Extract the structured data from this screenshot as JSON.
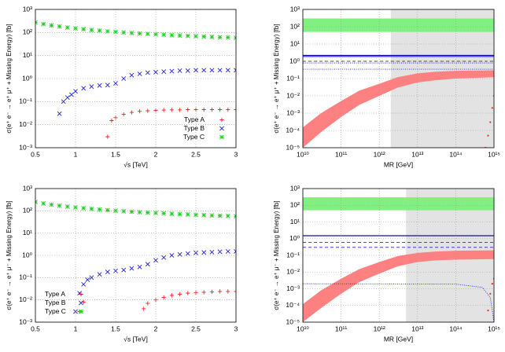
{
  "chart_data": [
    {
      "type": "scatter",
      "ylog": true,
      "grid": true,
      "legend": "lower right",
      "xlabel": "√s [TeV]",
      "ylabel": "σ(e⁺ e⁻ → e⁺ μ⁺ + Missing Energy) [fb]",
      "xlim": [
        0.5,
        3
      ],
      "ylim": [
        0.001,
        1000
      ],
      "xticks": [
        0.5,
        1,
        1.5,
        2,
        2.5,
        3
      ],
      "yticks": [
        {
          "value": 0.001,
          "label": "10⁻³"
        },
        {
          "value": 0.01,
          "label": "10⁻²"
        },
        {
          "value": 0.1,
          "label": "10⁻¹"
        },
        {
          "value": 1,
          "label": "10⁰"
        },
        {
          "value": 10,
          "label": "10¹"
        },
        {
          "value": 100,
          "label": "10²"
        },
        {
          "value": 1000,
          "label": "10³"
        }
      ],
      "series": [
        {
          "name": "Type A",
          "color": "#ff2020",
          "marker": "plus",
          "x": [
            1.4,
            1.45,
            1.5,
            1.6,
            1.7,
            1.8,
            1.9,
            2.0,
            2.1,
            2.2,
            2.3,
            2.4,
            2.5,
            2.6,
            2.7,
            2.8,
            2.9,
            3.0
          ],
          "values": [
            0.003,
            0.015,
            0.02,
            0.028,
            0.034,
            0.038,
            0.04,
            0.042,
            0.043,
            0.044,
            0.044,
            0.045,
            0.045,
            0.045,
            0.045,
            0.045,
            0.045,
            0.045
          ]
        },
        {
          "name": "Type B",
          "color": "#2020e0",
          "marker": "cross",
          "x": [
            0.8,
            0.85,
            0.9,
            0.95,
            1.0,
            1.1,
            1.2,
            1.3,
            1.4,
            1.5,
            1.6,
            1.7,
            1.8,
            1.9,
            2.0,
            2.1,
            2.2,
            2.3,
            2.4,
            2.5,
            2.6,
            2.7,
            2.8,
            2.9,
            3.0
          ],
          "values": [
            0.03,
            0.1,
            0.15,
            0.2,
            0.28,
            0.38,
            0.45,
            0.5,
            0.52,
            0.62,
            1.0,
            1.4,
            1.6,
            1.8,
            1.9,
            2.0,
            2.1,
            2.2,
            2.2,
            2.3,
            2.3,
            2.3,
            2.3,
            2.3,
            2.3
          ]
        },
        {
          "name": "Type C",
          "color": "#20d020",
          "marker": "star",
          "x": [
            0.5,
            0.6,
            0.7,
            0.8,
            0.9,
            1.0,
            1.1,
            1.2,
            1.3,
            1.4,
            1.5,
            1.6,
            1.7,
            1.8,
            1.9,
            2.0,
            2.1,
            2.2,
            2.3,
            2.4,
            2.5,
            2.6,
            2.7,
            2.8,
            2.9,
            3.0
          ],
          "values": [
            271,
            232,
            204,
            182,
            164,
            150,
            138,
            128,
            120,
            112,
            106,
            100,
            95,
            91,
            87,
            83,
            80,
            76,
            74,
            71,
            69,
            66,
            64,
            62,
            61,
            59
          ]
        }
      ]
    },
    {
      "type": "line",
      "xlog": true,
      "ylog": true,
      "grid": true,
      "xlabel": "MR [GeV]",
      "ylabel": "σ(e⁺ e⁻ → e⁺ μ⁺ + Missing Energy) [fb]",
      "xlim": [
        10000000000.0,
        1000000000000000.0
      ],
      "ylim": [
        1e-05,
        1000
      ],
      "xticks": [
        {
          "value": 10000000000.0,
          "label": "10¹⁰"
        },
        {
          "value": 100000000000.0,
          "label": "10¹¹"
        },
        {
          "value": 1000000000000.0,
          "label": "10¹²"
        },
        {
          "value": 10000000000000.0,
          "label": "10¹³"
        },
        {
          "value": 100000000000000.0,
          "label": "10¹⁴"
        },
        {
          "value": 1000000000000000.0,
          "label": "10¹⁵"
        }
      ],
      "yticks": [
        {
          "value": 1e-05,
          "label": "10⁻⁵"
        },
        {
          "value": 0.0001,
          "label": "10⁻⁴"
        },
        {
          "value": 0.001,
          "label": "10⁻³"
        },
        {
          "value": 0.01,
          "label": "10⁻²"
        },
        {
          "value": 0.1,
          "label": "10⁻¹"
        },
        {
          "value": 1,
          "label": "10⁰"
        },
        {
          "value": 10,
          "label": "10¹"
        },
        {
          "value": 100,
          "label": "10²"
        },
        {
          "value": 1000,
          "label": "10³"
        }
      ],
      "shade": {
        "xlim": [
          2000000000000.0,
          1000000000000000.0
        ],
        "color": "#e3e3e3"
      },
      "series": [
        {
          "style": "band",
          "color": "#80f080",
          "x": [
            10000000000.0,
            1000000000000000.0
          ],
          "upper": [
            300,
            300
          ],
          "lower": [
            50,
            50
          ]
        },
        {
          "style": "band",
          "color": "#ff8080",
          "x": [
            10000000000.0,
            30000000000.0,
            100000000000.0,
            300000000000.0,
            1000000000000.0,
            3000000000000.0,
            10000000000000.0,
            30000000000000.0,
            100000000000000.0,
            1000000000000000.0
          ],
          "upper": [
            0.00015,
            0.001,
            0.005,
            0.02,
            0.05,
            0.12,
            0.2,
            0.25,
            0.28,
            0.3
          ],
          "lower": [
            1e-05,
            8e-05,
            0.0006,
            0.003,
            0.01,
            0.03,
            0.06,
            0.08,
            0.1,
            0.12
          ]
        },
        {
          "style": "solid",
          "color": "#1010a0",
          "x": [
            10000000000.0,
            1000000000000000.0
          ],
          "values": [
            2.2,
            2.2
          ]
        },
        {
          "style": "solid",
          "color": "#3030ff",
          "x": [
            10000000000.0,
            1000000000000000.0
          ],
          "values": [
            1.9,
            1.9
          ]
        },
        {
          "style": "dashed",
          "color": "#404040",
          "x": [
            10000000000.0,
            1000000000000000.0
          ],
          "values": [
            1.0,
            1.0
          ]
        },
        {
          "style": "dotted",
          "color": "#2020e0",
          "x": [
            10000000000.0,
            1000000000000000.0
          ],
          "values": [
            0.8,
            0.8
          ]
        },
        {
          "style": "dotted",
          "color": "#2020e0",
          "x": [
            10000000000.0,
            1000000000000000.0
          ],
          "values": [
            0.35,
            0.35
          ]
        },
        {
          "style": "points",
          "color": "#ff2020",
          "x": [
            600000000000000.0,
            700000000000000.0,
            800000000000000.0,
            900000000000000.0,
            1000000000000000.0
          ],
          "values": [
            1e-05,
            5e-05,
            0.0003,
            0.002,
            0.01
          ]
        }
      ]
    },
    {
      "type": "scatter",
      "ylog": true,
      "grid": true,
      "legend": "lower left",
      "xlabel": "√s [TeV]",
      "ylabel": "σ(e⁺ e⁻ → e⁺ μ⁻ + Missing Energy) [fb]",
      "xlim": [
        0.5,
        3
      ],
      "ylim": [
        0.001,
        1000
      ],
      "xticks": [
        0.5,
        1,
        1.5,
        2,
        2.5,
        3
      ],
      "yticks": [
        {
          "value": 0.001,
          "label": "10⁻³"
        },
        {
          "value": 0.01,
          "label": "10⁻²"
        },
        {
          "value": 0.1,
          "label": "10⁻¹"
        },
        {
          "value": 1,
          "label": "10⁰"
        },
        {
          "value": 10,
          "label": "10¹"
        },
        {
          "value": 100,
          "label": "10²"
        },
        {
          "value": 1000,
          "label": "10³"
        }
      ],
      "series": [
        {
          "name": "Type A",
          "color": "#ff2020",
          "marker": "plus",
          "x": [
            1.05,
            1.1,
            1.85,
            1.9,
            2.0,
            2.1,
            2.2,
            2.3,
            2.4,
            2.5,
            2.6,
            2.7,
            2.8,
            2.9,
            3.0
          ],
          "values": [
            0.003,
            0.008,
            0.004,
            0.007,
            0.01,
            0.013,
            0.016,
            0.018,
            0.02,
            0.021,
            0.022,
            0.023,
            0.024,
            0.024,
            0.024
          ]
        },
        {
          "name": "Type B",
          "color": "#2020e0",
          "marker": "cross",
          "x": [
            1.0,
            1.05,
            1.1,
            1.15,
            1.2,
            1.3,
            1.4,
            1.5,
            1.6,
            1.7,
            1.8,
            1.9,
            2.0,
            2.1,
            2.2,
            2.3,
            2.4,
            2.5,
            2.6,
            2.7,
            2.8,
            2.9,
            3.0
          ],
          "values": [
            0.003,
            0.02,
            0.05,
            0.08,
            0.1,
            0.14,
            0.18,
            0.2,
            0.22,
            0.26,
            0.3,
            0.4,
            0.6,
            0.8,
            1.0,
            1.1,
            1.2,
            1.3,
            1.35,
            1.4,
            1.45,
            1.5,
            1.5
          ]
        },
        {
          "name": "Type C",
          "color": "#20d020",
          "marker": "star",
          "x": [
            0.5,
            0.6,
            0.7,
            0.8,
            0.9,
            1.0,
            1.1,
            1.2,
            1.3,
            1.4,
            1.5,
            1.6,
            1.7,
            1.8,
            1.9,
            2.0,
            2.1,
            2.2,
            2.3,
            2.4,
            2.5,
            2.6,
            2.7,
            2.8,
            2.9,
            3.0
          ],
          "values": [
            250,
            215,
            190,
            170,
            155,
            142,
            131,
            122,
            114,
            107,
            101,
            96,
            91,
            87,
            83,
            80,
            77,
            74,
            71,
            69,
            66,
            64,
            62,
            60,
            59,
            57
          ]
        }
      ]
    },
    {
      "type": "line",
      "xlog": true,
      "ylog": true,
      "grid": true,
      "xlabel": "MR [GeV]",
      "ylabel": "σ(e⁺ e⁻ → e⁺ μ⁻ + Missing Energy) [fb]",
      "xlim": [
        10000000000.0,
        1000000000000000.0
      ],
      "ylim": [
        1e-05,
        1000
      ],
      "xticks": [
        {
          "value": 10000000000.0,
          "label": "10¹⁰"
        },
        {
          "value": 100000000000.0,
          "label": "10¹¹"
        },
        {
          "value": 1000000000000.0,
          "label": "10¹²"
        },
        {
          "value": 10000000000000.0,
          "label": "10¹³"
        },
        {
          "value": 100000000000000.0,
          "label": "10¹⁴"
        },
        {
          "value": 1000000000000000.0,
          "label": "10¹⁵"
        }
      ],
      "yticks": [
        {
          "value": 1e-05,
          "label": "10⁻⁵"
        },
        {
          "value": 0.0001,
          "label": "10⁻⁴"
        },
        {
          "value": 0.001,
          "label": "10⁻³"
        },
        {
          "value": 0.01,
          "label": "10⁻²"
        },
        {
          "value": 0.1,
          "label": "10⁻¹"
        },
        {
          "value": 1,
          "label": "10⁰"
        },
        {
          "value": 10,
          "label": "10¹"
        },
        {
          "value": 100,
          "label": "10²"
        },
        {
          "value": 1000,
          "label": "10³"
        }
      ],
      "shade": {
        "xlim": [
          5000000000000.0,
          1000000000000000.0
        ],
        "color": "#e3e3e3"
      },
      "series": [
        {
          "style": "band",
          "color": "#80f080",
          "x": [
            10000000000.0,
            1000000000000000.0
          ],
          "upper": [
            300,
            300
          ],
          "lower": [
            50,
            50
          ]
        },
        {
          "style": "band",
          "color": "#ff8080",
          "x": [
            10000000000.0,
            30000000000.0,
            100000000000.0,
            300000000000.0,
            1000000000000.0,
            3000000000000.0,
            10000000000000.0,
            30000000000000.0,
            100000000000000.0,
            1000000000000000.0
          ],
          "upper": [
            0.00012,
            0.0008,
            0.004,
            0.015,
            0.04,
            0.09,
            0.14,
            0.17,
            0.19,
            0.2
          ],
          "lower": [
            1e-05,
            7e-05,
            0.0005,
            0.0025,
            0.008,
            0.022,
            0.04,
            0.05,
            0.055,
            0.06
          ]
        },
        {
          "style": "solid",
          "color": "#1010a0",
          "x": [
            10000000000.0,
            1000000000000000.0
          ],
          "values": [
            1.5,
            1.5
          ]
        },
        {
          "style": "dashed",
          "color": "#404040",
          "x": [
            10000000000.0,
            1000000000000000.0
          ],
          "values": [
            0.6,
            0.6
          ]
        },
        {
          "style": "dashed",
          "color": "#2020e0",
          "x": [
            10000000000.0,
            1000000000000000.0
          ],
          "values": [
            0.3,
            0.3
          ]
        },
        {
          "style": "dotted",
          "color": "#2020e0",
          "x": [
            10000000000.0,
            100000000000000.0,
            500000000000000.0,
            800000000000000.0,
            1000000000000000.0
          ],
          "values": [
            0.002,
            0.0019,
            0.0012,
            0.0003,
            1e-05
          ]
        },
        {
          "style": "points",
          "color": "#ff2020",
          "x": [
            700000000000000.0,
            800000000000000.0,
            900000000000000.0,
            1000000000000000.0
          ],
          "values": [
            5e-05,
            0.0005,
            0.002,
            0.004
          ]
        }
      ]
    }
  ]
}
